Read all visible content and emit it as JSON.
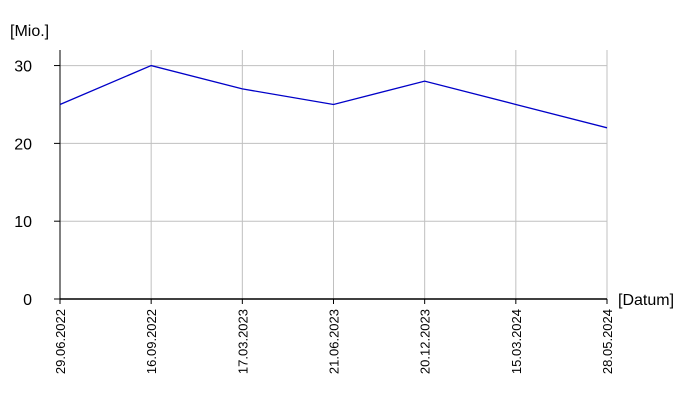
{
  "chart_data": {
    "type": "line",
    "y_axis_label": "[Mio.]",
    "x_axis_label": "[Datum]",
    "categories": [
      "29.06.2022",
      "16.09.2022",
      "17.03.2023",
      "21.06.2023",
      "20.12.2023",
      "15.03.2024",
      "28.05.2024"
    ],
    "values": [
      25,
      30,
      27,
      25,
      28,
      25,
      22
    ],
    "color": "#0000c8",
    "ylim": [
      0,
      32
    ],
    "yticks": [
      0,
      10,
      20,
      30
    ],
    "grid": true
  }
}
